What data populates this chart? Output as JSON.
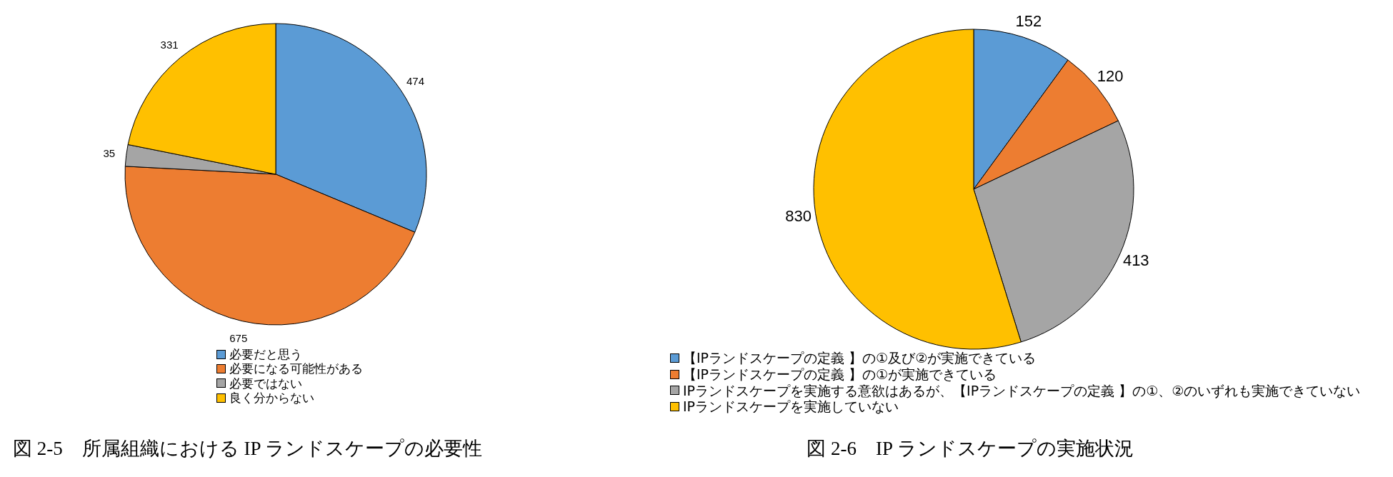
{
  "chart_data": [
    {
      "type": "pie",
      "title": "図 2-5　所属組織における IP ランドスケープの必要性",
      "categories": [
        "必要だと思う",
        "必要になる可能性がある",
        "必要ではない",
        "良く分からない"
      ],
      "values": [
        474,
        675,
        35,
        331
      ],
      "colors": [
        "#5b9bd5",
        "#ed7d31",
        "#a5a5a5",
        "#ffc000"
      ],
      "data_labels": true,
      "legend": "bottom"
    },
    {
      "type": "pie",
      "title": "図 2-6　IP ランドスケープの実施状況",
      "categories": [
        "【IPランドスケープの定義 】の①及び②が実施できている",
        "【IPランドスケープの定義 】の①が実施できている",
        "IPランドスケープを実施する意欲はあるが、【IPランドスケープの定義 】の①、②のいずれも実施できていない",
        "IPランドスケープを実施していない"
      ],
      "values": [
        152,
        120,
        413,
        830
      ],
      "colors": [
        "#5b9bd5",
        "#ed7d31",
        "#a5a5a5",
        "#ffc000"
      ],
      "data_labels": true,
      "legend": "bottom"
    }
  ]
}
